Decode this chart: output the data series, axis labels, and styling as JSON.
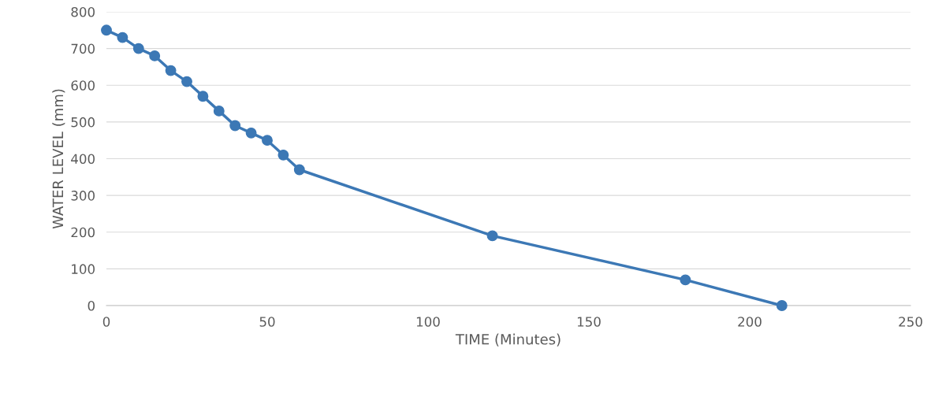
{
  "chart_data": {
    "type": "line",
    "xlabel": "TIME (Minutes)",
    "ylabel": "WATER LEVEL (mm)",
    "x": [
      0,
      5,
      10,
      15,
      20,
      25,
      30,
      35,
      40,
      45,
      50,
      55,
      60,
      120,
      180,
      210
    ],
    "values": [
      750,
      730,
      700,
      680,
      640,
      610,
      570,
      530,
      490,
      470,
      450,
      410,
      370,
      190,
      70,
      0
    ],
    "color": "#3c78b5",
    "marker": "circle",
    "line_style": "solid",
    "grid": "y",
    "xlim": [
      0,
      250
    ],
    "xticks": [
      0,
      50,
      100,
      150,
      200,
      250
    ],
    "ylim": [
      0,
      800
    ],
    "yticks": [
      0,
      100,
      200,
      300,
      400,
      500,
      600,
      700,
      800
    ]
  }
}
